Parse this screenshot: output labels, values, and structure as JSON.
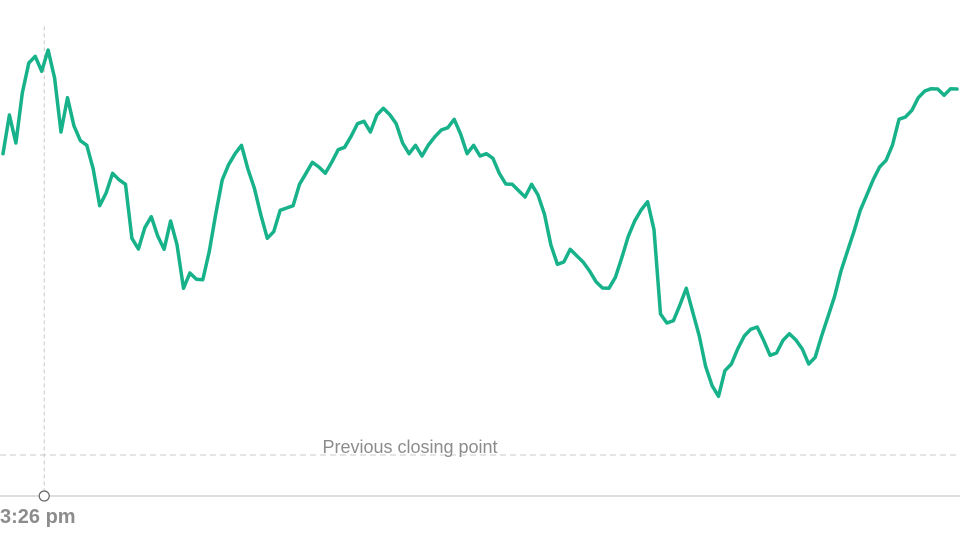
{
  "chart_data": {
    "type": "line",
    "reference_line_label": "Previous closing point",
    "time_label": "3:26 pm",
    "colors": {
      "line": "#17b28a",
      "reference": "#c8c8c8",
      "axis": "#bdbdbd",
      "text": "#8c8c8c"
    },
    "ylim": [
      0,
      100
    ],
    "reference_value": 10,
    "marker_index": 5,
    "series": [
      {
        "values": [
          80,
          88,
          82,
          94,
          100,
          102,
          99,
          103,
          97,
          85,
          92,
          86,
          83,
          81,
          76,
          68,
          70,
          75,
          74,
          72,
          60,
          58,
          62,
          65,
          61,
          57,
          64,
          59,
          48,
          52,
          51,
          50,
          57,
          66,
          73,
          77,
          80,
          81,
          76,
          72,
          65,
          60,
          62,
          66,
          67,
          68,
          72,
          75,
          78,
          76,
          75,
          78,
          80,
          81,
          84,
          86,
          87,
          85,
          88,
          90,
          89,
          86,
          82,
          80,
          81,
          79,
          82,
          83,
          85,
          86,
          87,
          84,
          80,
          81,
          79,
          80,
          78,
          75,
          73,
          72,
          71,
          70,
          72,
          70,
          66,
          58,
          54,
          55,
          57,
          56,
          55,
          52,
          50,
          49,
          48,
          51,
          56,
          60,
          64,
          67,
          68,
          62,
          43,
          40,
          41,
          45,
          48,
          43,
          38,
          30,
          26,
          24,
          29,
          31,
          35,
          37,
          39,
          40,
          36,
          33,
          34,
          36,
          38,
          37,
          34,
          31,
          33,
          37,
          42,
          47,
          52,
          57,
          62,
          66,
          70,
          74,
          76,
          78,
          82,
          87,
          88,
          90,
          92,
          94,
          95,
          94,
          93,
          95,
          94
        ]
      }
    ]
  }
}
